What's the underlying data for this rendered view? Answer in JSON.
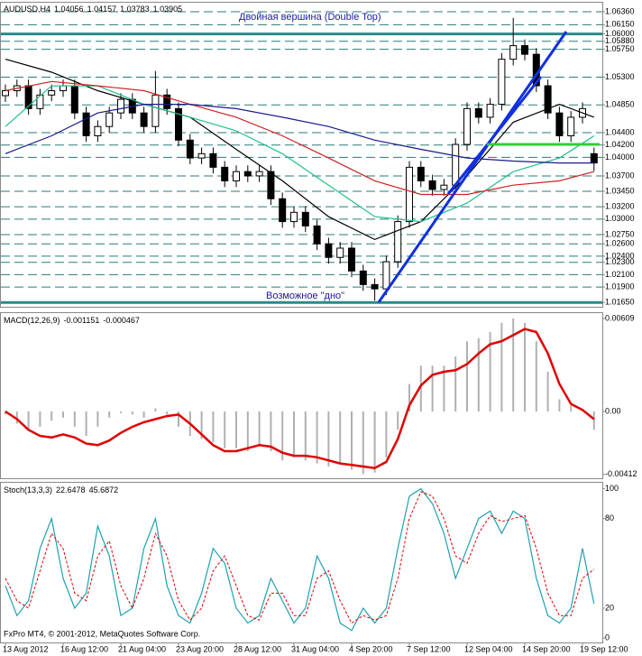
{
  "chart_data": [
    {
      "type": "candlestick",
      "title": "AUDUSD,H4",
      "quote": [
        1.04056,
        1.04157,
        1.03783,
        1.03905
      ],
      "open": [
        1.05,
        1.0508,
        1.0516,
        1.0479,
        1.0501,
        1.0508,
        1.0516,
        1.0472,
        1.0435,
        1.045,
        1.0472,
        1.0494,
        1.0472,
        1.045,
        1.0501,
        1.0479,
        1.0428,
        1.0399,
        1.0406,
        1.0384,
        1.0362,
        1.0377,
        1.037,
        1.0377,
        1.0333,
        1.0296,
        1.0311,
        1.0289,
        1.026,
        1.0238,
        1.0253,
        1.0216,
        1.0194,
        1.0187,
        1.0231,
        1.0296,
        1.0384,
        1.0362,
        1.0348,
        1.0355,
        1.0421,
        1.0479,
        1.0465,
        1.0486,
        1.0559,
        1.0581,
        1.0567,
        1.0516,
        1.0472,
        1.0435,
        1.0465,
        1.0406
      ],
      "high": [
        1.0518,
        1.0526,
        1.0526,
        1.0511,
        1.0518,
        1.0526,
        1.0526,
        1.0482,
        1.046,
        1.0482,
        1.0504,
        1.0504,
        1.0482,
        1.054,
        1.0511,
        1.0489,
        1.0438,
        1.0416,
        1.0416,
        1.0394,
        1.0387,
        1.0387,
        1.0387,
        1.0387,
        1.0343,
        1.0321,
        1.0321,
        1.0299,
        1.027,
        1.0263,
        1.0263,
        1.0226,
        1.0204,
        1.0241,
        1.0306,
        1.0394,
        1.0394,
        1.0372,
        1.0365,
        1.0431,
        1.0489,
        1.0489,
        1.0496,
        1.0569,
        1.0626,
        1.0591,
        1.0577,
        1.0526,
        1.0482,
        1.0475,
        1.0489,
        1.0416
      ],
      "low": [
        1.049,
        1.0498,
        1.0469,
        1.0469,
        1.0491,
        1.0498,
        1.0462,
        1.0425,
        1.0425,
        1.044,
        1.0462,
        1.0462,
        1.044,
        1.044,
        1.0469,
        1.0418,
        1.0389,
        1.0389,
        1.0374,
        1.0352,
        1.0352,
        1.036,
        1.036,
        1.0323,
        1.0286,
        1.0286,
        1.0279,
        1.025,
        1.0228,
        1.0228,
        1.0206,
        1.0184,
        1.0168,
        1.0177,
        1.0221,
        1.0286,
        1.0352,
        1.0338,
        1.0338,
        1.0345,
        1.0411,
        1.0455,
        1.0455,
        1.0476,
        1.0549,
        1.0557,
        1.0506,
        1.0462,
        1.0425,
        1.0425,
        1.0455,
        1.0378
      ],
      "close": [
        1.0508,
        1.0516,
        1.0479,
        1.0501,
        1.0508,
        1.0516,
        1.0472,
        1.0435,
        1.045,
        1.0472,
        1.0494,
        1.0472,
        1.045,
        1.0501,
        1.0479,
        1.0428,
        1.0399,
        1.0406,
        1.0384,
        1.0362,
        1.0377,
        1.037,
        1.0377,
        1.0333,
        1.0296,
        1.0311,
        1.0289,
        1.026,
        1.0238,
        1.0253,
        1.0216,
        1.0194,
        1.0187,
        1.0231,
        1.0296,
        1.0384,
        1.0362,
        1.0348,
        1.0355,
        1.0421,
        1.0479,
        1.0465,
        1.0486,
        1.0559,
        1.0581,
        1.0567,
        1.0516,
        1.0472,
        1.0435,
        1.0465,
        1.0479,
        1.0391
      ],
      "overlays": [
        {
          "color": "#000000",
          "x": [
            0,
            4,
            8,
            12,
            16,
            20,
            24,
            28,
            32,
            36,
            40,
            44,
            48,
            51
          ],
          "values": [
            1.0559,
            1.0538,
            1.0508,
            1.0486,
            1.0465,
            1.0413,
            1.0362,
            1.0304,
            1.0267,
            1.0296,
            1.037,
            1.0457,
            1.0486,
            1.0465
          ]
        },
        {
          "color": "#20c090",
          "x": [
            0,
            4,
            8,
            12,
            16,
            20,
            24,
            28,
            32,
            36,
            40,
            44,
            48,
            51
          ],
          "values": [
            1.045,
            1.0516,
            1.0516,
            1.0486,
            1.0465,
            1.0443,
            1.0406,
            1.0355,
            1.0304,
            1.0296,
            1.0326,
            1.0377,
            1.0399,
            1.0435
          ]
        },
        {
          "color": "#d02020",
          "x": [
            0,
            4,
            8,
            12,
            16,
            20,
            24,
            28,
            32,
            36,
            40,
            44,
            48,
            51
          ],
          "values": [
            1.0508,
            1.0523,
            1.0516,
            1.0508,
            1.0486,
            1.0465,
            1.0435,
            1.0399,
            1.0362,
            1.034,
            1.034,
            1.0355,
            1.0362,
            1.0377
          ]
        },
        {
          "color": "#1a1a8c",
          "x": [
            0,
            4,
            8,
            12,
            16,
            20,
            24,
            28,
            32,
            36,
            40,
            44,
            48,
            51
          ],
          "values": [
            1.0406,
            1.0435,
            1.0472,
            1.0486,
            1.0486,
            1.0479,
            1.0465,
            1.045,
            1.0428,
            1.0413,
            1.0399,
            1.0394,
            1.0391,
            1.0391
          ]
        }
      ],
      "ylim": [
        1.0158,
        1.0652
      ],
      "yticks": [
        {
          "value": 1.0636,
          "label": "1.06360"
        },
        {
          "value": 1.0615,
          "label": "1.06150"
        },
        {
          "value": 1.06,
          "label": "1.06000"
        },
        {
          "value": 1.0588,
          "label": "1.05880"
        },
        {
          "value": 1.0575,
          "label": "1.05750"
        },
        {
          "value": 1.053,
          "label": "1.05300"
        },
        {
          "value": 1.0485,
          "label": "1.04850"
        },
        {
          "value": 1.044,
          "label": "1.04400"
        },
        {
          "value": 1.042,
          "label": "1.04200"
        },
        {
          "value": 1.04,
          "label": "1.04000"
        },
        {
          "value": 1.037,
          "label": "1.03700"
        },
        {
          "value": 1.0345,
          "label": "1.03450"
        },
        {
          "value": 1.032,
          "label": "1.03200"
        },
        {
          "value": 1.03,
          "label": "1.03000"
        },
        {
          "value": 1.0275,
          "label": "1.02750"
        },
        {
          "value": 1.026,
          "label": "1.02600"
        },
        {
          "value": 1.024,
          "label": "1.02400"
        },
        {
          "value": 1.023,
          "label": "1.02300"
        },
        {
          "value": 1.021,
          "label": "1.02100"
        },
        {
          "value": 1.019,
          "label": "1.01900"
        },
        {
          "value": 1.0165,
          "label": "1.01650"
        }
      ],
      "key_levels": [
        1.06,
        1.0165
      ],
      "annotations": [
        "Двойная вершина (Double Top)",
        "Возможное \"дно\""
      ]
    },
    {
      "type": "macd",
      "title": "MACD(12,26,9)",
      "quote": [
        -0.001151,
        -0.000467
      ],
      "series": [
        {
          "color": "#b0b0b0",
          "values": [
            -0.0002,
            -0.0008,
            -0.0012,
            -0.001,
            -0.0006,
            -0.0004,
            -0.001,
            -0.0016,
            -0.001,
            -0.0004,
            -0.0001,
            -0.0002,
            -0.0004,
            0.0002,
            -0.0002,
            -0.001,
            -0.0016,
            -0.0018,
            -0.002,
            -0.0024,
            -0.0024,
            -0.0026,
            -0.0022,
            -0.0026,
            -0.0032,
            -0.003,
            -0.0032,
            -0.0034,
            -0.0036,
            -0.0034,
            -0.0038,
            -0.0041,
            -0.004,
            -0.003,
            -0.0012,
            0.0018,
            0.003,
            0.003,
            0.003,
            0.0036,
            0.0046,
            0.0048,
            0.0052,
            0.0058,
            0.0061,
            0.0058,
            0.0046,
            0.0026,
            0.0008,
            0.0004,
            0.0001,
            -0.0012
          ]
        },
        {
          "color": "#e00000",
          "values": [
            0.0,
            -0.0005,
            -0.0012,
            -0.0016,
            -0.0017,
            -0.0015,
            -0.0017,
            -0.0021,
            -0.0022,
            -0.0019,
            -0.0014,
            -0.001,
            -0.0007,
            -0.0005,
            -0.0003,
            -0.0002,
            -0.0008,
            -0.0015,
            -0.0022,
            -0.0026,
            -0.0026,
            -0.0024,
            -0.0022,
            -0.0023,
            -0.0027,
            -0.0029,
            -0.0029,
            -0.003,
            -0.0032,
            -0.0034,
            -0.0035,
            -0.0036,
            -0.0037,
            -0.0033,
            -0.0018,
            0.0004,
            0.0017,
            0.0024,
            0.0026,
            0.0027,
            0.0031,
            0.0038,
            0.0044,
            0.0046,
            0.005,
            0.0054,
            0.0052,
            0.0038,
            0.0018,
            0.0005,
            0.0001,
            -0.0005
          ]
        }
      ],
      "ylim": [
        -0.00437,
        0.00644
      ],
      "yticks": [
        0.00609,
        {
          "value": 0,
          "label": "0.00"
        },
        -0.00412
      ]
    },
    {
      "type": "stochastic",
      "title": "Stoch(13,3,3)",
      "quote": [
        22.6478,
        45.6872
      ],
      "categories": [
        "13 Aug 2012",
        null,
        null,
        null,
        null,
        "16 Aug 12:00",
        null,
        null,
        null,
        null,
        "21 Aug 04:00",
        null,
        null,
        null,
        null,
        "23 Aug 20:00",
        null,
        null,
        null,
        null,
        "28 Aug 12:00",
        null,
        null,
        null,
        null,
        "31 Aug 04:00",
        null,
        null,
        null,
        null,
        "4 Sep 20:00",
        null,
        null,
        null,
        null,
        "7 Sep 12:00",
        null,
        null,
        null,
        null,
        "12 Sep 04:00",
        null,
        null,
        null,
        null,
        "14 Sep 20:00",
        null,
        null,
        null,
        null,
        "19 Sep 12:00",
        null
      ],
      "series": [
        {
          "color": "#20a0b0",
          "values": [
            35,
            15,
            25,
            60,
            80,
            40,
            20,
            30,
            75,
            55,
            15,
            20,
            60,
            80,
            35,
            15,
            10,
            30,
            60,
            50,
            20,
            10,
            15,
            40,
            25,
            10,
            20,
            55,
            40,
            10,
            5,
            20,
            10,
            20,
            60,
            95,
            100,
            90,
            70,
            40,
            60,
            80,
            85,
            70,
            85,
            80,
            40,
            15,
            10,
            20,
            60,
            23
          ]
        },
        {
          "color": "#e00000",
          "values": [
            40,
            25,
            20,
            45,
            70,
            60,
            30,
            25,
            55,
            65,
            35,
            20,
            40,
            70,
            55,
            25,
            12,
            20,
            45,
            55,
            35,
            15,
            12,
            30,
            30,
            15,
            15,
            40,
            45,
            25,
            10,
            15,
            12,
            15,
            40,
            80,
            98,
            95,
            80,
            55,
            50,
            70,
            82,
            78,
            80,
            82,
            60,
            30,
            15,
            15,
            40,
            46
          ]
        }
      ],
      "ylim": [
        -3,
        104
      ],
      "yticks": [
        100,
        80,
        20,
        0
      ],
      "footer": "FxPro MT4, © 2001-2012, MetaQuotes Software Corp."
    }
  ]
}
